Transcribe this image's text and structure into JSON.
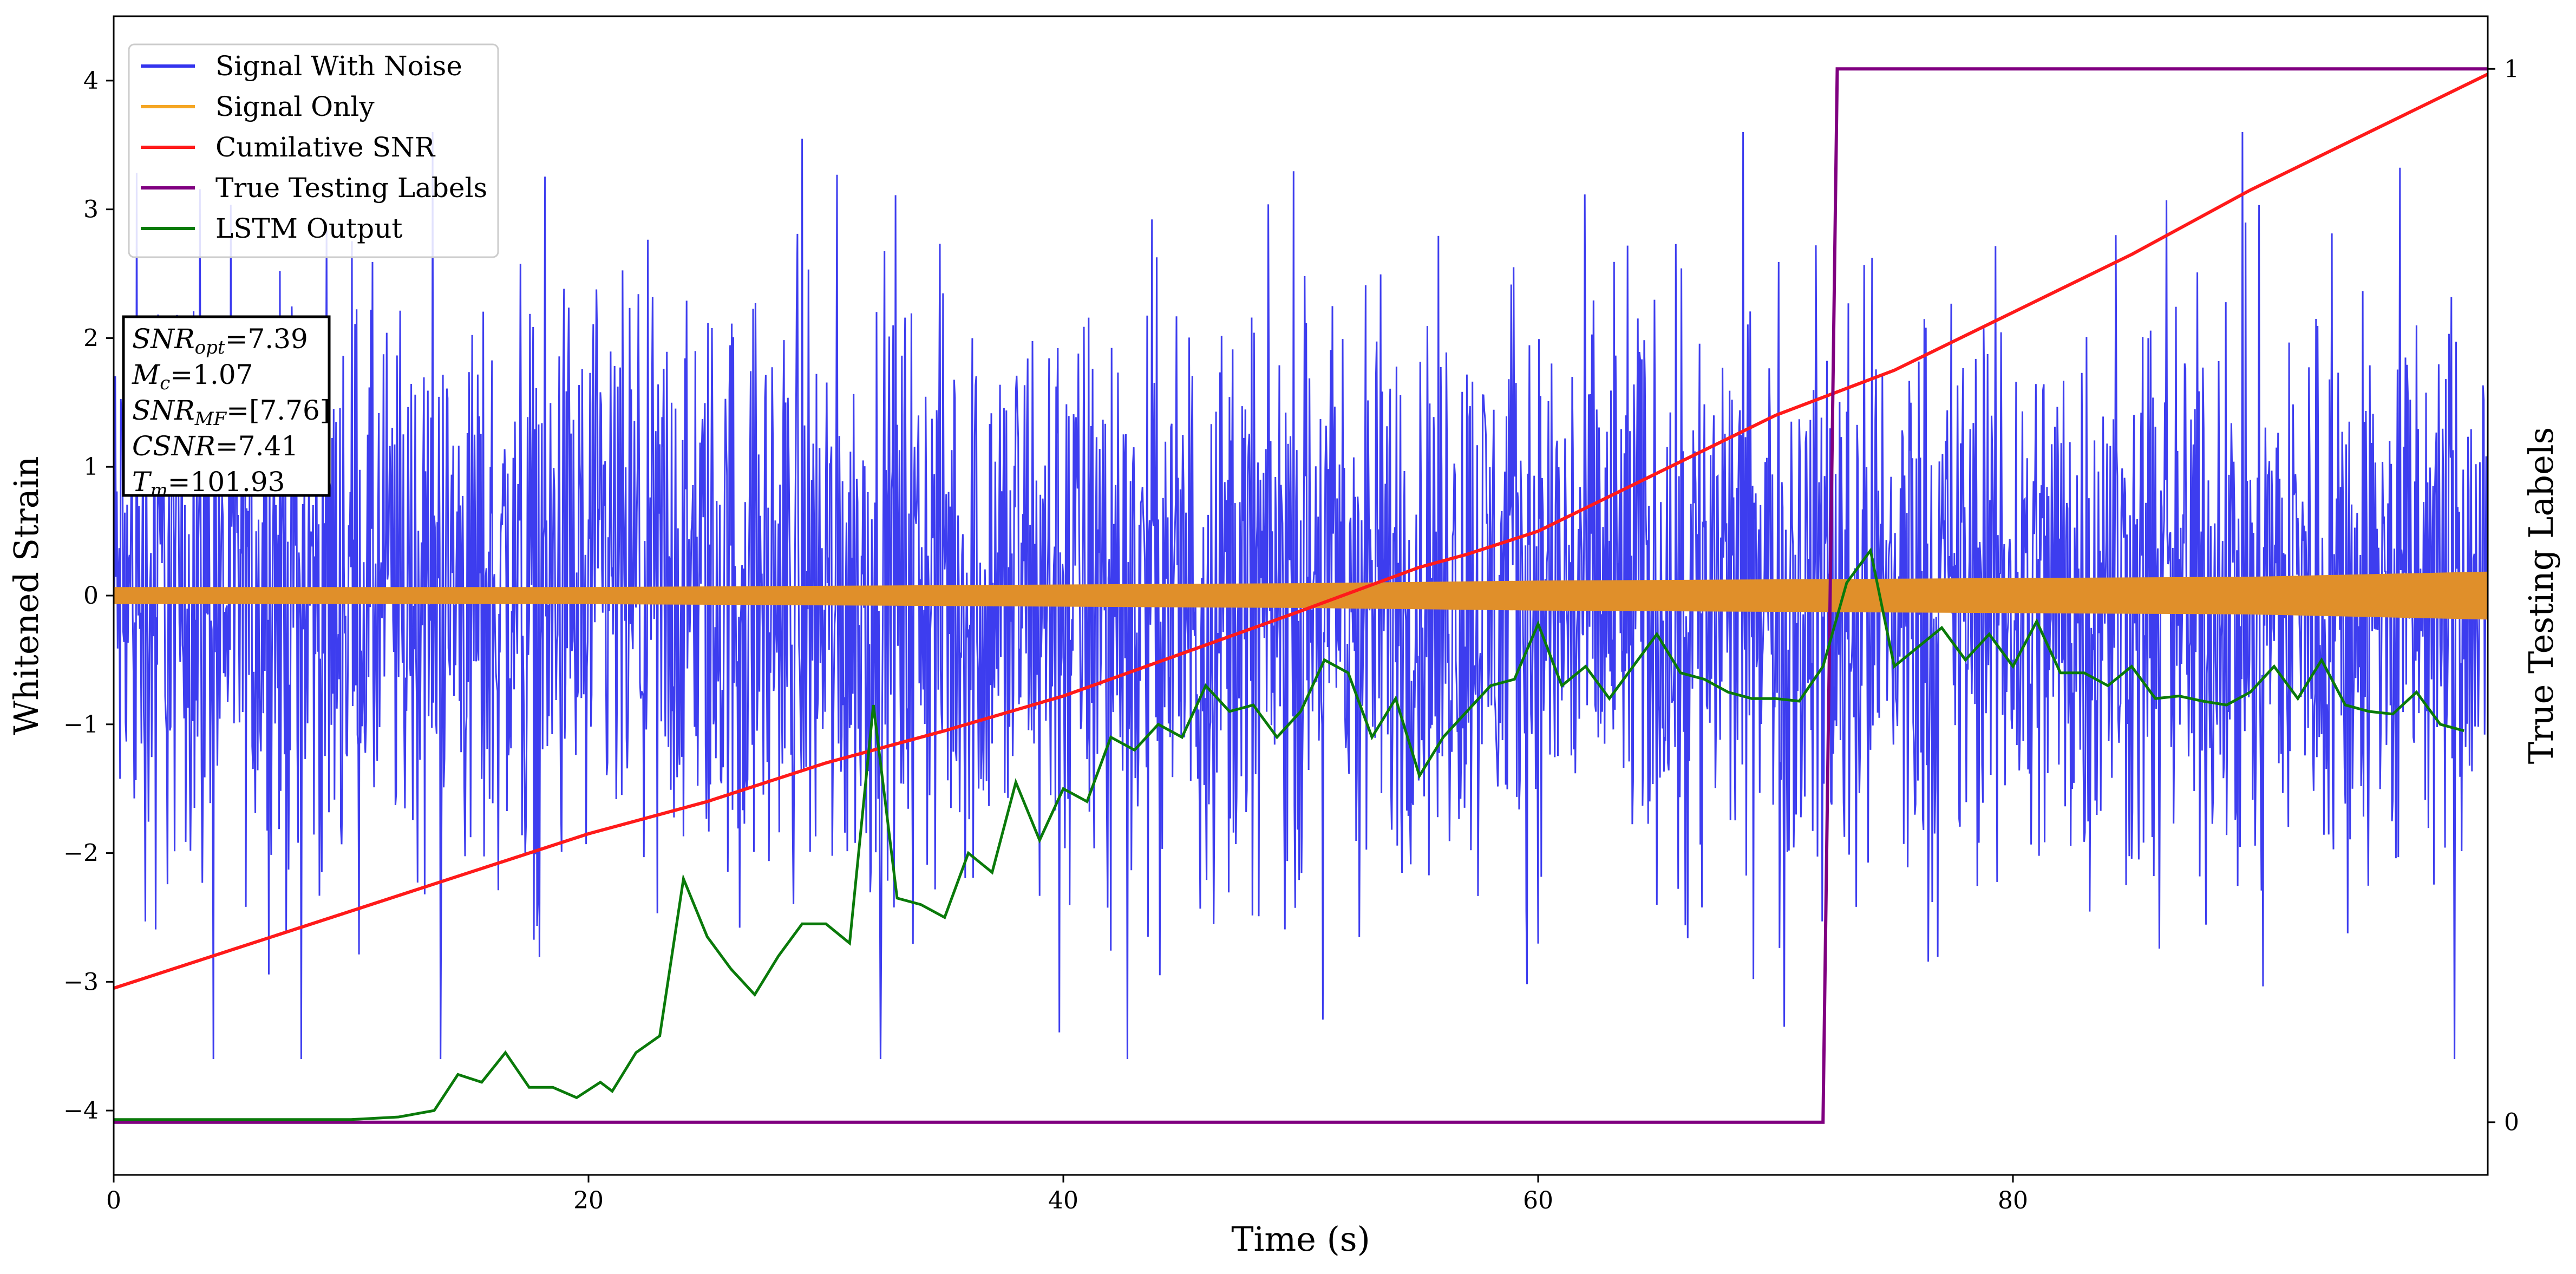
{
  "chart_data": {
    "type": "line",
    "xlabel": "Time (s)",
    "ylabel": "Whitened Strain",
    "y2label": "True Testing Labels",
    "xlim": [
      0,
      100
    ],
    "ylim": [
      -4.5,
      4.5
    ],
    "y2lim": [
      -0.05,
      1.05
    ],
    "xticks": [
      0,
      20,
      40,
      60,
      80
    ],
    "yticks": [
      -4,
      -3,
      -2,
      -1,
      0,
      1,
      2,
      3,
      4
    ],
    "y2ticks": [
      0,
      1
    ],
    "grid": false,
    "legend_position": "upper-left",
    "legend": [
      {
        "label": "Signal With Noise",
        "color": "#3333ee"
      },
      {
        "label": "Signal Only",
        "color": "#f5a623"
      },
      {
        "label": "Cumilative SNR",
        "color": "#ff1a1a"
      },
      {
        "label": "True Testing Labels",
        "color": "#800080"
      },
      {
        "label": "LSTM Output",
        "color": "#0a7a0a"
      }
    ],
    "info_box": [
      {
        "var": "SNR",
        "sub": "opt",
        "value": "=7.39"
      },
      {
        "var": "M",
        "sub": "c",
        "value": "=1.07"
      },
      {
        "var": "SNR",
        "sub": "MF",
        "value": "=[7.76]"
      },
      {
        "var": "CSNR",
        "sub": "",
        "value": "=7.41"
      },
      {
        "var": "T",
        "sub": "m",
        "value": "=101.93"
      }
    ],
    "series": [
      {
        "name": "Signal With Noise",
        "axis": "left",
        "color": "#3333ee",
        "description": "dense noisy strain, roughly within -4.1 to 3.9",
        "amplitude_envelope": {
          "x": [
            0,
            100
          ],
          "y_min": -3.6,
          "y_max": 3.6
        }
      },
      {
        "name": "Signal Only",
        "axis": "left",
        "color": "#e08f2a",
        "x": [
          0,
          10,
          20,
          30,
          40,
          50,
          55,
          60,
          70,
          80,
          90,
          100
        ],
        "y_upper": [
          0.06,
          0.06,
          0.06,
          0.07,
          0.08,
          0.09,
          0.1,
          0.11,
          0.12,
          0.13,
          0.14,
          0.18
        ],
        "y_lower": [
          -0.06,
          -0.06,
          -0.06,
          -0.07,
          -0.08,
          -0.09,
          -0.1,
          -0.11,
          -0.12,
          -0.13,
          -0.14,
          -0.18
        ]
      },
      {
        "name": "Cumilative SNR",
        "axis": "left",
        "color": "#ff1a1a",
        "x": [
          0,
          5,
          10,
          15,
          20,
          25,
          30,
          35,
          40,
          45,
          50,
          55,
          57,
          60,
          65,
          70,
          75,
          80,
          85,
          90,
          95,
          100
        ],
        "y": [
          -3.05,
          -2.75,
          -2.45,
          -2.15,
          -1.85,
          -1.6,
          -1.3,
          -1.05,
          -0.78,
          -0.45,
          -0.12,
          0.22,
          0.32,
          0.5,
          0.95,
          1.4,
          1.75,
          2.2,
          2.65,
          3.15,
          3.6,
          4.05
        ]
      },
      {
        "name": "True Testing Labels",
        "axis": "right",
        "color": "#800080",
        "x": [
          0,
          72.0,
          72.6,
          100
        ],
        "y": [
          0,
          0,
          1,
          1
        ]
      },
      {
        "name": "LSTM Output",
        "axis": "left",
        "color": "#0a7a0a",
        "x": [
          0,
          10,
          12,
          13.5,
          14.5,
          15.5,
          16.5,
          17.5,
          18.5,
          19.5,
          20.5,
          21,
          22,
          23,
          24,
          25,
          26,
          27,
          28,
          29,
          30,
          31,
          32,
          33,
          34,
          35,
          36,
          37,
          38,
          39,
          40,
          41,
          42,
          43,
          44,
          45,
          46,
          47,
          48,
          49,
          50,
          51,
          52,
          53,
          54,
          55,
          56,
          57,
          58,
          59,
          60,
          61,
          62,
          63,
          64,
          65,
          66,
          67,
          68,
          69,
          70,
          71,
          72,
          73,
          74,
          75,
          76,
          77,
          78,
          79,
          80,
          81,
          82,
          83,
          84,
          85,
          86,
          87,
          88,
          89,
          90,
          91,
          92,
          93,
          94,
          95,
          96,
          97,
          98,
          99
        ],
        "y": [
          -4.07,
          -4.07,
          -4.05,
          -4.0,
          -3.72,
          -3.78,
          -3.55,
          -3.82,
          -3.82,
          -3.9,
          -3.78,
          -3.85,
          -3.55,
          -3.42,
          -2.2,
          -2.65,
          -2.9,
          -3.1,
          -2.8,
          -2.55,
          -2.55,
          -2.7,
          -0.85,
          -2.35,
          -2.4,
          -2.5,
          -2.0,
          -2.15,
          -1.45,
          -1.9,
          -1.5,
          -1.6,
          -1.1,
          -1.2,
          -1.0,
          -1.1,
          -0.7,
          -0.9,
          -0.85,
          -1.1,
          -0.9,
          -0.5,
          -0.6,
          -1.1,
          -0.8,
          -1.4,
          -1.1,
          -0.9,
          -0.7,
          -0.65,
          -0.22,
          -0.7,
          -0.55,
          -0.8,
          -0.55,
          -0.3,
          -0.6,
          -0.65,
          -0.75,
          -0.8,
          -0.8,
          -0.82,
          -0.55,
          0.1,
          0.35,
          -0.55,
          -0.4,
          -0.25,
          -0.5,
          -0.3,
          -0.55,
          -0.2,
          -0.6,
          -0.6,
          -0.7,
          -0.55,
          -0.8,
          -0.78,
          -0.82,
          -0.85,
          -0.75,
          -0.55,
          -0.8,
          -0.5,
          -0.85,
          -0.9,
          -0.92,
          -0.75,
          -1.0,
          -1.05
        ]
      }
    ]
  }
}
